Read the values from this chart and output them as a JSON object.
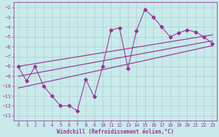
{
  "xlabel": "Windchill (Refroidissement éolien,°C)",
  "bg_color": "#c8eaea",
  "line_color": "#993399",
  "grid_color": "#aacccc",
  "x_data": [
    0,
    1,
    2,
    3,
    4,
    5,
    6,
    7,
    8,
    9,
    10,
    11,
    12,
    13,
    14,
    15,
    16,
    17,
    18,
    19,
    20,
    21,
    22,
    23
  ],
  "y_data": [
    -8,
    -9.5,
    -8,
    -10,
    -11,
    -12,
    -12,
    -12.5,
    -9.3,
    -11.1,
    -8,
    -4.3,
    -4.1,
    -8.2,
    -4.4,
    -2.2,
    -3.0,
    -4.0,
    -5.0,
    -4.6,
    -4.3,
    -4.5,
    -5.0,
    -5.7
  ],
  "reg_upper_y0": -8.0,
  "reg_upper_y1": -4.8,
  "reg_mid_y0": -9.0,
  "reg_mid_y1": -5.4,
  "reg_lower_y0": -10.2,
  "reg_lower_y1": -5.9,
  "ylim": [
    -13.5,
    -1.5
  ],
  "xlim": [
    -0.5,
    23.5
  ],
  "yticks": [
    -2,
    -3,
    -4,
    -5,
    -6,
    -7,
    -8,
    -9,
    -10,
    -11,
    -12,
    -13
  ],
  "xticks": [
    0,
    1,
    2,
    3,
    4,
    5,
    6,
    7,
    8,
    9,
    10,
    11,
    12,
    13,
    14,
    15,
    16,
    17,
    18,
    19,
    20,
    21,
    22,
    23
  ],
  "marker": "D",
  "markersize": 2.5,
  "linewidth": 0.8,
  "reg_linewidth": 0.9,
  "label_fontsize": 5.5,
  "tick_fontsize": 5
}
